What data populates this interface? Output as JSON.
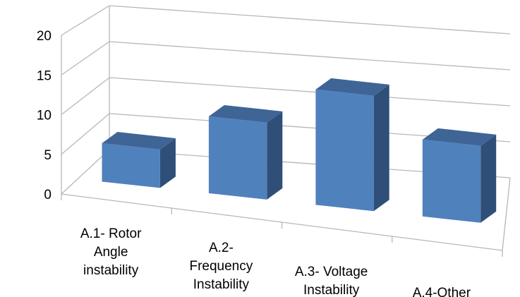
{
  "chart_data": {
    "type": "bar",
    "title": "",
    "xlabel": "",
    "ylabel": "",
    "ylim": [
      0,
      20
    ],
    "yticks": [
      0,
      5,
      10,
      15,
      20
    ],
    "grid": true,
    "three_d": true,
    "categories": [
      "A.1- Rotor Angle instability",
      "A.2- Frequency Instability",
      "A.3- Voltage Instability",
      "A.4-Other"
    ],
    "category_label_lines": [
      [
        "A.1- Rotor",
        "Angle",
        "instability"
      ],
      [
        "A.2-",
        "Frequency",
        "Instability"
      ],
      [
        "A.3- Voltage",
        "Instability"
      ],
      [
        "A.4-Other"
      ]
    ],
    "values": [
      5,
      10,
      15,
      10
    ],
    "colors": {
      "bar_front": "#4f81bd",
      "bar_side": "#2f4f78",
      "bar_top": "#3e6596"
    }
  }
}
